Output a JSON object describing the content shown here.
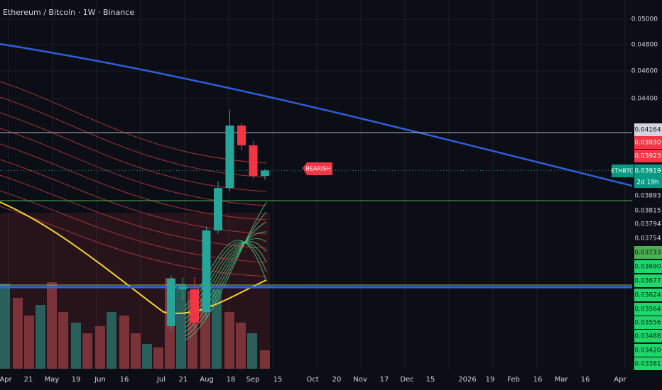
{
  "header": {
    "title": "Ethereum / Bitcoin · 1W · Binance"
  },
  "chart_data": {
    "type": "candlestick",
    "log_scale": true,
    "ylim": [
      0.02848,
      0.05157
    ],
    "yticks": [
      {
        "value": 0.05,
        "label": "0.05000"
      },
      {
        "value": 0.048,
        "label": "0.04800"
      },
      {
        "value": 0.046,
        "label": "0.04600"
      },
      {
        "value": 0.044,
        "label": "0.04400"
      }
    ],
    "up_color": "#26a69a",
    "down_color": "#f23645",
    "open": [
      0.0305,
      0.03237,
      0.03237,
      0.0312,
      0.03558,
      0.0381,
      0.04213,
      0.04081,
      0.03885
    ],
    "high": [
      0.0331,
      0.033,
      0.033,
      0.0358,
      0.0385,
      0.04321,
      0.0423,
      0.0411,
      0.0393
    ],
    "low": [
      0.0303,
      0.0318,
      0.0304,
      0.0309,
      0.0354,
      0.0379,
      0.0405,
      0.0387,
      0.0386
    ],
    "close": [
      0.03293,
      0.0325,
      0.03068,
      0.03558,
      0.0381,
      0.04213,
      0.04081,
      0.03885,
      0.03919
    ]
  },
  "signal": {
    "label": "BEARISH",
    "color": "#f23645"
  },
  "price_tags": [
    {
      "text": "0.04164",
      "color": "#d1d4dc",
      "text_color": "#131722"
    },
    {
      "text": "0.03930",
      "color": "#f23645",
      "text_color": "#ffffff"
    },
    {
      "text": "0.03923",
      "color": "#f23645",
      "text_color": "#ffffff"
    },
    {
      "text": "0.03919",
      "color": "#089981",
      "text_color": "#ffffff"
    },
    {
      "text": "0.03893",
      "color": "#0c0e15",
      "text_color": "#d1d4dc"
    },
    {
      "text": "0.03815",
      "color": "#0c0e15",
      "text_color": "#d1d4dc"
    },
    {
      "text": "0.03794",
      "color": "#0c0e15",
      "text_color": "#d1d4dc"
    },
    {
      "text": "0.03754",
      "color": "#0c0e15",
      "text_color": "#d1d4dc"
    },
    {
      "text": "0.03733",
      "color": "#4caf50",
      "text_color": "#131722"
    },
    {
      "text": "0.03690",
      "color": "#1fd86a",
      "text_color": "#131722"
    },
    {
      "text": "0.03677",
      "color": "#1fd86a",
      "text_color": "#131722"
    },
    {
      "text": "0.03624",
      "color": "#1fd86a",
      "text_color": "#131722"
    },
    {
      "text": "0.03564",
      "color": "#1fd86a",
      "text_color": "#131722"
    },
    {
      "text": "0.03556",
      "color": "#1fd86a",
      "text_color": "#131722"
    },
    {
      "text": "0.03488",
      "color": "#1fd86a",
      "text_color": "#131722"
    },
    {
      "text": "0.03420",
      "color": "#1fd86a",
      "text_color": "#131722"
    },
    {
      "text": "0.03381",
      "color": "#1fd86a",
      "text_color": "#131722"
    }
  ],
  "symbol": {
    "name": "ETHBTC",
    "countdown": "2d 19h"
  },
  "time_axis": [
    "Apr",
    "21",
    "May",
    "19",
    "Jun",
    "16",
    "Jul",
    "21",
    "Aug",
    "18",
    "Sep",
    "15",
    "Oct",
    "20",
    "Nov",
    "17",
    "Dec",
    "15",
    "2026",
    "19",
    "Feb",
    "16",
    "Mar",
    "16",
    "Apr"
  ]
}
